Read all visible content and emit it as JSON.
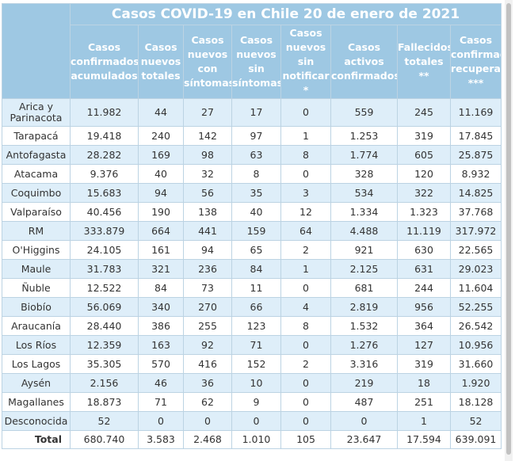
{
  "title": "Casos COVID-19 en Chile 20 de enero de 2021",
  "headers": [
    "",
    "Casos confirmados acumulados",
    "Casos nuevos totales",
    "Casos nuevos con síntomas",
    "Casos nuevos sin síntomas",
    "Casos nuevos sin notificar *",
    "Casos activos confirmados",
    "Fallecidos totales **",
    "Casos confirmados recuperados ***"
  ],
  "rows": [
    [
      "Arica y Parinacota",
      "11.982",
      "44",
      "27",
      "17",
      "0",
      "559",
      "245",
      "11.169"
    ],
    [
      "Tarapacá",
      "19.418",
      "240",
      "142",
      "97",
      "1",
      "1.253",
      "319",
      "17.845"
    ],
    [
      "Antofagasta",
      "28.282",
      "169",
      "98",
      "63",
      "8",
      "1.774",
      "605",
      "25.875"
    ],
    [
      "Atacama",
      "9.376",
      "40",
      "32",
      "8",
      "0",
      "328",
      "120",
      "8.932"
    ],
    [
      "Coquimbo",
      "15.683",
      "94",
      "56",
      "35",
      "3",
      "534",
      "322",
      "14.825"
    ],
    [
      "Valparaíso",
      "40.456",
      "190",
      "138",
      "40",
      "12",
      "1.334",
      "1.323",
      "37.768"
    ],
    [
      "RM",
      "333.879",
      "664",
      "441",
      "159",
      "64",
      "4.488",
      "11.119",
      "317.972"
    ],
    [
      "O'Higgins",
      "24.105",
      "161",
      "94",
      "65",
      "2",
      "921",
      "630",
      "22.565"
    ],
    [
      "Maule",
      "31.783",
      "321",
      "236",
      "84",
      "1",
      "2.125",
      "631",
      "29.023"
    ],
    [
      "Ñuble",
      "12.522",
      "84",
      "73",
      "11",
      "0",
      "681",
      "244",
      "11.604"
    ],
    [
      "Biobío",
      "56.069",
      "340",
      "270",
      "66",
      "4",
      "2.819",
      "956",
      "52.255"
    ],
    [
      "Araucanía",
      "28.440",
      "386",
      "255",
      "123",
      "8",
      "1.532",
      "364",
      "26.542"
    ],
    [
      "Los Ríos",
      "12.359",
      "163",
      "92",
      "71",
      "0",
      "1.276",
      "127",
      "10.956"
    ],
    [
      "Los Lagos",
      "35.305",
      "570",
      "416",
      "152",
      "2",
      "3.316",
      "319",
      "31.660"
    ],
    [
      "Aysén",
      "2.156",
      "46",
      "36",
      "10",
      "0",
      "219",
      "18",
      "1.920"
    ],
    [
      "Magallanes",
      "18.873",
      "71",
      "62",
      "9",
      "0",
      "487",
      "251",
      "18.128"
    ],
    [
      "Desconocida",
      "52",
      "0",
      "0",
      "0",
      "0",
      "0",
      "1",
      "52"
    ]
  ],
  "total": [
    "Total",
    "680.740",
    "3.583",
    "2.468",
    "1.010",
    "105",
    "23.647",
    "17.594",
    "639.091"
  ],
  "colors": {
    "header_bg": "#9ec8e3",
    "header_text": "#ffffff",
    "alt_row": "#deeef9",
    "border": "#bcd3e3"
  }
}
